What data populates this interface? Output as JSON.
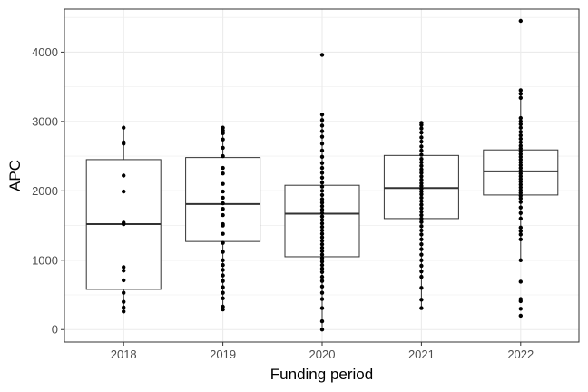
{
  "chart_data": {
    "type": "box",
    "xlabel": "Funding period",
    "ylabel": "APC",
    "ylim": [
      -180,
      4620
    ],
    "yticks": [
      0,
      1000,
      2000,
      3000,
      4000
    ],
    "grid": true,
    "colors": {
      "point": "#000000",
      "box_edge": "#333333",
      "grid": "#ebebeb",
      "panel_border": "#333333"
    },
    "categories": [
      "2018",
      "2019",
      "2020",
      "2021",
      "2022"
    ],
    "boxes": [
      {
        "category": "2018",
        "q1": 580,
        "median": 1520,
        "q3": 2450,
        "whisker_low": 260,
        "whisker_high": 2910
      },
      {
        "category": "2019",
        "q1": 1270,
        "median": 1810,
        "q3": 2480,
        "whisker_low": 290,
        "whisker_high": 2910
      },
      {
        "category": "2020",
        "q1": 1050,
        "median": 1670,
        "q3": 2080,
        "whisker_low": 0,
        "whisker_high": 3100
      },
      {
        "category": "2021",
        "q1": 1600,
        "median": 2040,
        "q3": 2510,
        "whisker_low": 310,
        "whisker_high": 2980
      },
      {
        "category": "2022",
        "q1": 1940,
        "median": 2280,
        "q3": 2590,
        "whisker_low": 1000,
        "whisker_high": 3450
      }
    ],
    "points": [
      {
        "category": "2018",
        "values": [
          2910,
          2700,
          2680,
          2220,
          1990,
          1540,
          1520,
          900,
          850,
          710,
          530,
          400,
          320,
          260
        ]
      },
      {
        "category": "2019",
        "values": [
          2910,
          2870,
          2830,
          2740,
          2620,
          2500,
          2330,
          2250,
          2100,
          1990,
          1900,
          1820,
          1740,
          1650,
          1520,
          1500,
          1380,
          1250,
          1120,
          1000,
          930,
          860,
          780,
          700,
          610,
          530,
          450,
          330,
          290
        ]
      },
      {
        "category": "2020",
        "values": [
          3960,
          3100,
          3020,
          2940,
          2860,
          2780,
          2680,
          2580,
          2490,
          2400,
          2330,
          2260,
          2190,
          2120,
          2060,
          2000,
          1940,
          1880,
          1830,
          1780,
          1730,
          1680,
          1630,
          1580,
          1530,
          1480,
          1430,
          1380,
          1330,
          1280,
          1230,
          1180,
          1130,
          1080,
          1030,
          980,
          930,
          880,
          830,
          760,
          700,
          620,
          530,
          440,
          310,
          120,
          0
        ]
      },
      {
        "category": "2021",
        "values": [
          2980,
          2950,
          2900,
          2840,
          2770,
          2710,
          2640,
          2580,
          2520,
          2460,
          2410,
          2360,
          2310,
          2260,
          2210,
          2160,
          2110,
          2070,
          2030,
          1990,
          1950,
          1900,
          1850,
          1800,
          1750,
          1700,
          1650,
          1600,
          1550,
          1490,
          1430,
          1370,
          1300,
          1230,
          1160,
          1080,
          1000,
          920,
          840,
          760,
          600,
          430,
          310
        ]
      },
      {
        "category": "2022",
        "values": [
          4450,
          3450,
          3400,
          3340,
          3050,
          3000,
          2960,
          2910,
          2850,
          2800,
          2750,
          2700,
          2650,
          2610,
          2570,
          2530,
          2490,
          2450,
          2410,
          2370,
          2330,
          2290,
          2250,
          2210,
          2170,
          2130,
          2090,
          2050,
          2010,
          1970,
          1930,
          1890,
          1840,
          1760,
          1680,
          1600,
          1470,
          1420,
          1370,
          1300,
          1000,
          690,
          440,
          410,
          300,
          200
        ]
      }
    ]
  }
}
